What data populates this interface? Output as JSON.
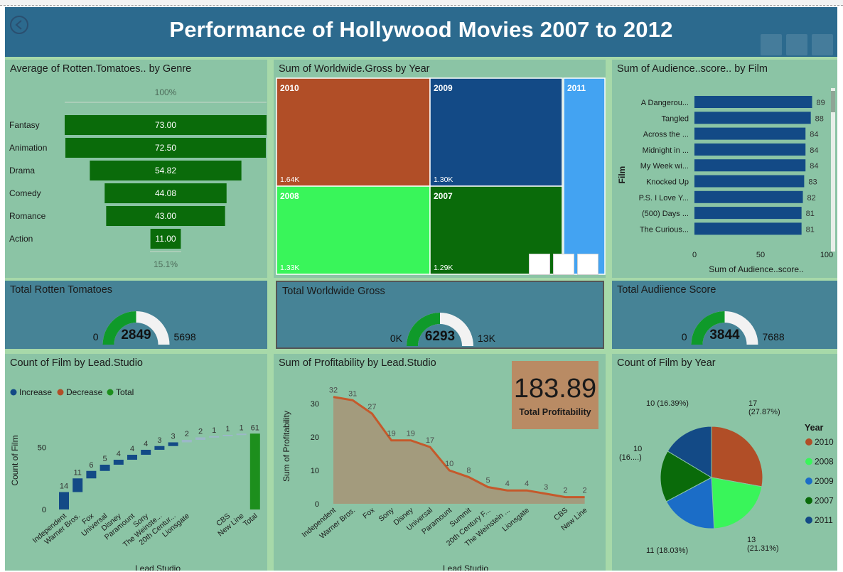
{
  "title": "Performance of Hollywood Movies 2007 to 2012",
  "colors": {
    "header": "#2c6a8e",
    "panel": "#8bc4a5",
    "gauge_panel": "#468396",
    "green": "#1d8f1d",
    "dark_green": "#0a6b0a",
    "navy": "#134a86",
    "orange": "#b14e27",
    "light_green": "#39f55a",
    "blue": "#1b6dc7",
    "light_blue": "#43a3f2",
    "kpi": "#b98b64"
  },
  "funnel": {
    "title": "Average of Rotten.Tomatoes.. by Genre",
    "top_label": "100%",
    "bottom_label": "15.1%",
    "categories": [
      "Fantasy",
      "Animation",
      "Drama",
      "Comedy",
      "Romance",
      "Action"
    ],
    "values": [
      "73.00",
      "72.50",
      "54.82",
      "44.08",
      "43.00",
      "11.00"
    ]
  },
  "treemap": {
    "title": "Sum of Worldwide.Gross by Year",
    "items": [
      {
        "year": "2010",
        "value": "1.64K"
      },
      {
        "year": "2009",
        "value": "1.30K"
      },
      {
        "year": "2011",
        "value": ""
      },
      {
        "year": "2008",
        "value": "1.33K"
      },
      {
        "year": "2007",
        "value": "1.29K"
      }
    ]
  },
  "audience": {
    "title": "Sum of Audience..score.. by Film",
    "ylabel": "Film",
    "xlabel": "Sum of Audience..score..",
    "ticks": [
      "0",
      "50",
      "100"
    ],
    "films": [
      "A Dangerou...",
      "Tangled",
      "Across the ...",
      "Midnight in ...",
      "My Week wi...",
      "Knocked Up",
      "P.S. I Love Y...",
      "(500) Days ...",
      "The Curious..."
    ],
    "scores": [
      "89",
      "88",
      "84",
      "84",
      "84",
      "83",
      "82",
      "81",
      "81"
    ]
  },
  "gauges": [
    {
      "title": "Total Rotten Tomatoes",
      "min": "0",
      "value": "2849",
      "max": "5698"
    },
    {
      "title": "Total Worldwide Gross",
      "min": "0K",
      "value": "6293",
      "max": "13K"
    },
    {
      "title": "Total Audiience Score",
      "min": "0",
      "value": "3844",
      "max": "7688"
    }
  ],
  "waterfall": {
    "title": "Count of Film by Lead.Studio",
    "legend": [
      "Increase",
      "Decrease",
      "Total"
    ],
    "ylabel": "Count of Film",
    "xlabel": "Lead.Studio",
    "yticks": [
      "0",
      "50"
    ],
    "studios": [
      "Independent",
      "Warner Bros.",
      "Fox",
      "Universal",
      "Disney",
      "Paramount",
      "Sony",
      "The Weinste...",
      "20th Centur...",
      "Lionsgate",
      "",
      "",
      "CBS",
      "New Line",
      "Total"
    ],
    "values": [
      "14",
      "11",
      "6",
      "5",
      "4",
      "4",
      "4",
      "3",
      "3",
      "2",
      "2",
      "1",
      "1",
      "1",
      "61"
    ]
  },
  "profit": {
    "title": "Sum of Profitability by Lead.Studio",
    "ylabel": "Sum of Profitability",
    "xlabel": "Lead.Studio",
    "yticks": [
      "0",
      "10",
      "20",
      "30"
    ],
    "studios": [
      "Independent",
      "Warner Bros.",
      "Fox",
      "Sony",
      "Disney",
      "Universal",
      "Paramount",
      "Summit",
      "20th Century F...",
      "The Weinstein ...",
      "Lionsgate",
      "",
      "CBS",
      "New Line"
    ],
    "values": [
      "32",
      "31",
      "27",
      "19",
      "19",
      "17",
      "10",
      "8",
      "5",
      "4",
      "4",
      "3",
      "2",
      "2"
    ]
  },
  "kpi": {
    "value": "183.89",
    "label": "Total Profitability"
  },
  "pie": {
    "title": "Count of Film by Year",
    "legend_title": "Year",
    "slices": [
      {
        "year": "2010",
        "label": "17",
        "pct": "(27.87%)"
      },
      {
        "year": "2008",
        "label": "13",
        "pct": "(21.31%)"
      },
      {
        "year": "2009",
        "label": "11 (18.03%)",
        "pct": ""
      },
      {
        "year": "2007",
        "label": "10",
        "pct": "(16....)"
      },
      {
        "year": "2011",
        "label": "10 (16.39%)",
        "pct": ""
      }
    ],
    "counts": [
      17,
      13,
      11,
      10,
      10
    ]
  }
}
